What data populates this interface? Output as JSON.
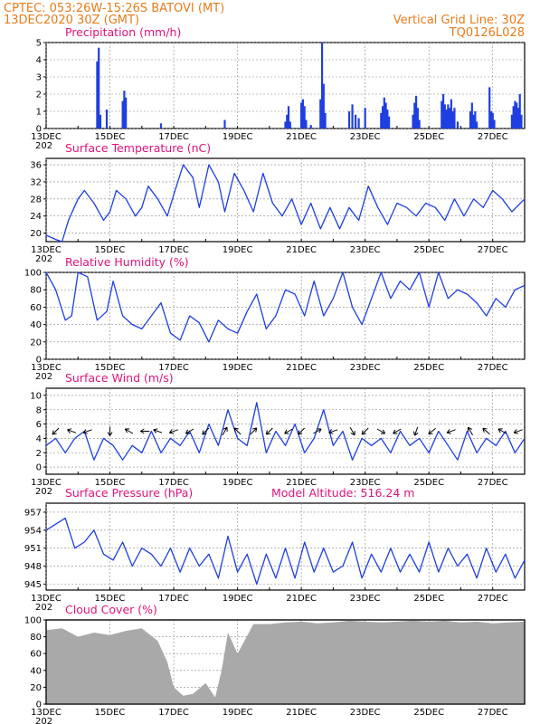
{
  "header": {
    "line1_left": "CPTEC:   053:26W-15:26S   BATOVI (MT)",
    "line2_left": "13DEC2020 30Z (GMT)",
    "line1_right": "Vertical Grid Line: 30Z",
    "line2_right": "TQ0126L028"
  },
  "x_axis": {
    "start_day": 13,
    "end_day": 28.0,
    "tick_labels": [
      "13DEC",
      "15DEC",
      "17DEC",
      "19DEC",
      "21DEC",
      "23DEC",
      "25DEC",
      "27DEC"
    ],
    "tick_days": [
      13,
      15,
      17,
      19,
      21,
      23,
      25,
      27
    ],
    "year_fragment": "202"
  },
  "colors": {
    "line": "#1f3fe0",
    "bar": "#1f3fe0",
    "cloud": "#a9a9a9",
    "title": "#e0137a",
    "header": "#e87b1a"
  },
  "chart_data": [
    {
      "type": "bar",
      "title": "Precipitation (mm/h)",
      "ylim": [
        0,
        5
      ],
      "y_ticks": [
        "0",
        "1",
        "2",
        "3",
        "4",
        "5"
      ],
      "x": [
        14.6,
        14.65,
        14.7,
        14.9,
        15.4,
        15.45,
        15.5,
        16.6,
        18.6,
        20.5,
        20.55,
        20.6,
        20.65,
        21.0,
        21.05,
        21.1,
        21.15,
        21.3,
        21.6,
        21.65,
        21.7,
        21.75,
        22.5,
        22.6,
        22.7,
        22.8,
        23.0,
        23.5,
        23.55,
        23.6,
        23.65,
        23.7,
        23.75,
        24.5,
        24.55,
        24.6,
        24.65,
        24.7,
        25.4,
        25.45,
        25.5,
        25.55,
        25.6,
        25.65,
        25.7,
        25.75,
        25.8,
        25.9,
        26.3,
        26.35,
        26.4,
        26.45,
        26.5,
        26.9,
        26.95,
        27.0,
        27.05,
        27.6,
        27.65,
        27.7,
        27.75,
        27.8,
        27.85,
        27.9
      ],
      "values": [
        3.9,
        4.7,
        0.8,
        1.1,
        1.6,
        2.2,
        1.8,
        0.3,
        0.5,
        0.4,
        0.8,
        1.3,
        0.4,
        1.5,
        1.7,
        1.3,
        0.5,
        0.2,
        1.7,
        5.0,
        2.6,
        0.9,
        1.0,
        1.4,
        0.8,
        0.6,
        1.2,
        0.9,
        1.3,
        1.8,
        1.5,
        1.1,
        0.7,
        0.8,
        1.5,
        1.9,
        1.2,
        0.5,
        1.6,
        2.0,
        1.4,
        1.1,
        1.4,
        1.2,
        1.7,
        1.0,
        1.2,
        0.4,
        1.0,
        1.5,
        0.8,
        1.0,
        0.4,
        2.4,
        1.0,
        0.9,
        0.5,
        0.8,
        1.3,
        1.6,
        1.5,
        1.2,
        2.0,
        0.8
      ]
    },
    {
      "type": "line",
      "title": "Surface Temperature (nC)",
      "ylim": [
        18,
        37.5
      ],
      "y_ticks": [
        "20",
        "24",
        "28",
        "32",
        "36"
      ],
      "x": [
        13.0,
        13.3,
        13.5,
        13.7,
        14.0,
        14.2,
        14.5,
        14.8,
        15.0,
        15.2,
        15.5,
        15.8,
        16.0,
        16.2,
        16.5,
        16.8,
        17.0,
        17.3,
        17.6,
        17.8,
        18.1,
        18.4,
        18.6,
        18.9,
        19.2,
        19.5,
        19.8,
        20.1,
        20.4,
        20.7,
        21.0,
        21.3,
        21.6,
        21.9,
        22.2,
        22.5,
        22.8,
        23.1,
        23.4,
        23.7,
        24.0,
        24.3,
        24.6,
        24.9,
        25.2,
        25.5,
        25.8,
        26.1,
        26.4,
        26.7,
        27.0,
        27.3,
        27.6,
        28.0
      ],
      "values": [
        19.5,
        18.5,
        18,
        23,
        28,
        30,
        27,
        23,
        25,
        30,
        28,
        24,
        26,
        31,
        28,
        24,
        29,
        36,
        33,
        26,
        36,
        32,
        25,
        34,
        30,
        25,
        34,
        27,
        24,
        28,
        22,
        27,
        21,
        26,
        21,
        26,
        23,
        31,
        26,
        22,
        27,
        26,
        24,
        27,
        26,
        23,
        28,
        24,
        28,
        26,
        30,
        28,
        25,
        28
      ]
    },
    {
      "type": "line",
      "title": "Relative Humidity (%)",
      "ylim": [
        0,
        100
      ],
      "y_ticks": [
        "0",
        "20",
        "40",
        "60",
        "80",
        "100"
      ],
      "x": [
        13.0,
        13.3,
        13.6,
        13.8,
        14.0,
        14.3,
        14.6,
        14.9,
        15.1,
        15.4,
        15.7,
        16.0,
        16.3,
        16.6,
        16.9,
        17.2,
        17.5,
        17.8,
        18.1,
        18.4,
        18.7,
        19.0,
        19.3,
        19.6,
        19.9,
        20.2,
        20.5,
        20.8,
        21.1,
        21.4,
        21.7,
        22.0,
        22.3,
        22.6,
        22.9,
        23.2,
        23.5,
        23.8,
        24.1,
        24.4,
        24.7,
        25.0,
        25.3,
        25.6,
        25.9,
        26.2,
        26.5,
        26.8,
        27.1,
        27.4,
        27.7,
        28.0
      ],
      "values": [
        100,
        80,
        45,
        50,
        100,
        95,
        45,
        55,
        90,
        50,
        40,
        35,
        50,
        65,
        30,
        22,
        50,
        42,
        20,
        45,
        35,
        30,
        55,
        75,
        35,
        50,
        80,
        75,
        50,
        90,
        50,
        70,
        100,
        60,
        40,
        70,
        100,
        70,
        90,
        80,
        100,
        60,
        100,
        70,
        80,
        75,
        65,
        50,
        70,
        60,
        80,
        85
      ]
    },
    {
      "type": "line",
      "title": "Surface Wind (m/s)",
      "ylim": [
        -1,
        11
      ],
      "y_ticks": [
        "0",
        "2",
        "4",
        "6",
        "8",
        "10"
      ],
      "x": [
        13.0,
        13.3,
        13.6,
        13.9,
        14.2,
        14.5,
        14.8,
        15.1,
        15.4,
        15.7,
        16.0,
        16.3,
        16.6,
        16.9,
        17.2,
        17.5,
        17.8,
        18.1,
        18.4,
        18.7,
        19.0,
        19.3,
        19.6,
        19.9,
        20.2,
        20.5,
        20.8,
        21.1,
        21.4,
        21.7,
        22.0,
        22.3,
        22.6,
        22.9,
        23.2,
        23.5,
        23.8,
        24.1,
        24.4,
        24.7,
        25.0,
        25.3,
        25.6,
        25.9,
        26.2,
        26.5,
        26.8,
        27.1,
        27.4,
        27.7,
        28.0
      ],
      "values": [
        3,
        4,
        2,
        4,
        5,
        1,
        4,
        3,
        1,
        3,
        2,
        5,
        2,
        4,
        3,
        5,
        2,
        6,
        3,
        8,
        4,
        3,
        9,
        2,
        5,
        3,
        6,
        2,
        4,
        8,
        3,
        5,
        1,
        4,
        3,
        4,
        2,
        5,
        3,
        4,
        2,
        5,
        3,
        1,
        5,
        2,
        4,
        3,
        5,
        2,
        4
      ],
      "arrow_x": [
        13.3,
        13.8,
        14.3,
        15.0,
        15.6,
        16.1,
        16.5,
        17.0,
        17.5,
        18.0,
        18.6,
        19.0,
        19.5,
        20.0,
        20.6,
        21.0,
        21.5,
        22.0,
        22.6,
        23.0,
        23.5,
        24.0,
        24.6,
        25.1,
        25.7,
        26.3,
        26.8,
        27.3,
        27.8
      ],
      "arrow_dir": [
        225,
        160,
        200,
        270,
        150,
        180,
        160,
        200,
        210,
        225,
        60,
        135,
        45,
        225,
        210,
        225,
        30,
        200,
        300,
        225,
        330,
        210,
        250,
        220,
        200,
        120,
        140,
        150,
        200
      ]
    },
    {
      "type": "line",
      "title": "Surface Pressure (hPa)",
      "annotation": "Model Altitude: 516.24 m",
      "ylim": [
        944,
        958.5
      ],
      "y_ticks": [
        "945",
        "948",
        "951",
        "954",
        "957"
      ],
      "x": [
        13.0,
        13.3,
        13.6,
        13.9,
        14.2,
        14.5,
        14.8,
        15.1,
        15.4,
        15.7,
        16.0,
        16.3,
        16.6,
        16.9,
        17.2,
        17.5,
        17.8,
        18.1,
        18.4,
        18.7,
        19.0,
        19.3,
        19.6,
        19.9,
        20.2,
        20.5,
        20.8,
        21.1,
        21.4,
        21.7,
        22.0,
        22.3,
        22.6,
        22.9,
        23.2,
        23.5,
        23.8,
        24.1,
        24.4,
        24.7,
        25.0,
        25.3,
        25.6,
        25.9,
        26.2,
        26.5,
        26.8,
        27.1,
        27.4,
        27.7,
        28.0
      ],
      "values": [
        954,
        955,
        956,
        951,
        952,
        954,
        950,
        949,
        952,
        948,
        951,
        950,
        948,
        951,
        947,
        951,
        948,
        950,
        946,
        953,
        947,
        950,
        945,
        950,
        946,
        951,
        946,
        952,
        947,
        951,
        947,
        948,
        952,
        946,
        950,
        947,
        951,
        947,
        950,
        947,
        952,
        947,
        951,
        948,
        950,
        946,
        951,
        947,
        950,
        946,
        949
      ]
    },
    {
      "type": "area",
      "title": "Cloud Cover (%)",
      "ylim": [
        0,
        100
      ],
      "y_ticks": [
        "0",
        "20",
        "40",
        "60",
        "80",
        "100"
      ],
      "x": [
        13.0,
        13.5,
        14.0,
        14.5,
        15.0,
        15.5,
        16.0,
        16.5,
        16.8,
        17.0,
        17.3,
        17.6,
        18.0,
        18.3,
        18.5,
        18.7,
        19.0,
        19.5,
        20.0,
        20.5,
        21.0,
        21.5,
        22.0,
        22.5,
        23.0,
        23.5,
        24.0,
        24.5,
        25.0,
        25.5,
        26.0,
        26.5,
        27.0,
        27.5,
        28.0
      ],
      "values": [
        88,
        90,
        80,
        85,
        82,
        87,
        90,
        75,
        50,
        20,
        10,
        12,
        25,
        8,
        40,
        85,
        60,
        95,
        95,
        97,
        98,
        96,
        97,
        99,
        98,
        97,
        98,
        99,
        98,
        99,
        97,
        98,
        96,
        97,
        98
      ]
    }
  ]
}
